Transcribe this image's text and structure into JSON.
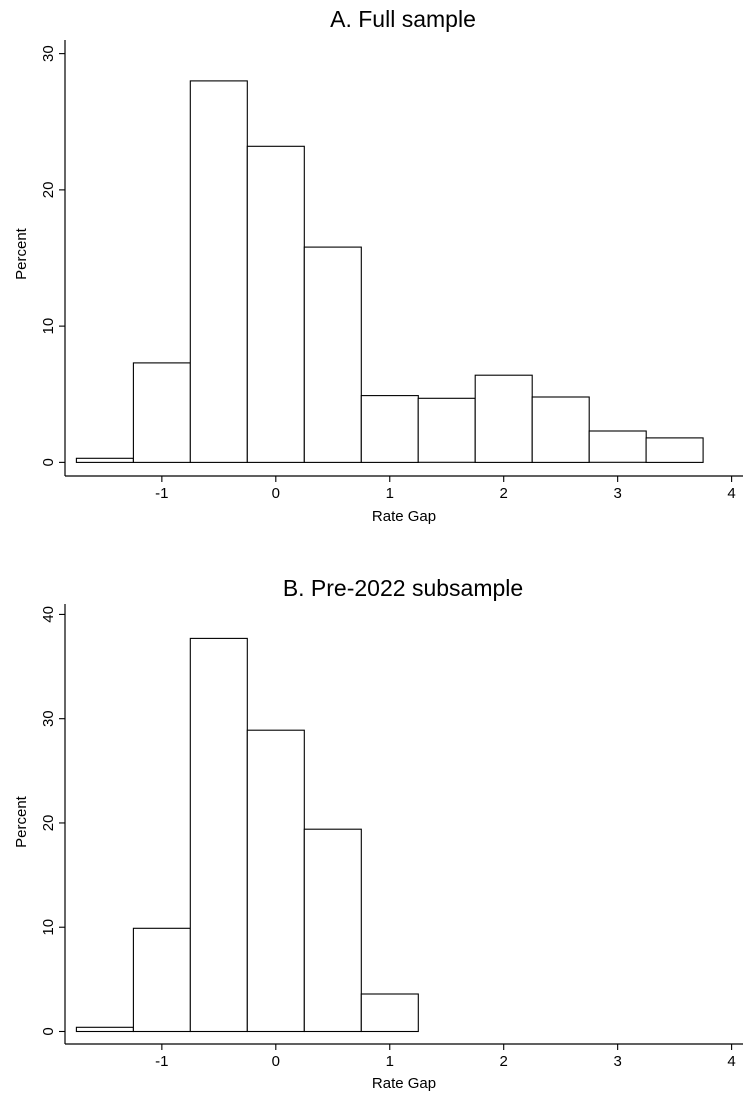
{
  "chart_data": [
    {
      "type": "bar",
      "title": "A. Full sample",
      "xlabel": "Rate Gap",
      "ylabel": "Percent",
      "bin_width": 0.5,
      "bins": [
        {
          "x0": -1.75,
          "x1": -1.25,
          "value": 0.3
        },
        {
          "x0": -1.25,
          "x1": -0.75,
          "value": 7.3
        },
        {
          "x0": -0.75,
          "x1": -0.25,
          "value": 28.0
        },
        {
          "x0": -0.25,
          "x1": 0.25,
          "value": 23.2
        },
        {
          "x0": 0.25,
          "x1": 0.75,
          "value": 15.8
        },
        {
          "x0": 0.75,
          "x1": 1.25,
          "value": 4.9
        },
        {
          "x0": 1.25,
          "x1": 1.75,
          "value": 4.7
        },
        {
          "x0": 1.75,
          "x1": 2.25,
          "value": 6.4
        },
        {
          "x0": 2.25,
          "x1": 2.75,
          "value": 4.8
        },
        {
          "x0": 2.75,
          "x1": 3.25,
          "value": 2.3
        },
        {
          "x0": 3.25,
          "x1": 3.75,
          "value": 1.8
        }
      ],
      "xlim": [
        -1.85,
        4.1
      ],
      "ylim": [
        -1,
        31
      ],
      "xticks": [
        -1,
        0,
        1,
        2,
        3,
        4
      ],
      "xtick_labels": [
        "-1",
        "0",
        "1",
        "2",
        "3",
        "4"
      ],
      "yticks": [
        0,
        10,
        20,
        30
      ],
      "ytick_labels": [
        "0",
        "10",
        "20",
        "30"
      ]
    },
    {
      "type": "bar",
      "title": "B. Pre-2022 subsample",
      "xlabel": "Rate Gap",
      "ylabel": "Percent",
      "bin_width": 0.5,
      "bins": [
        {
          "x0": -1.75,
          "x1": -1.25,
          "value": 0.4
        },
        {
          "x0": -1.25,
          "x1": -0.75,
          "value": 9.9
        },
        {
          "x0": -0.75,
          "x1": -0.25,
          "value": 37.7
        },
        {
          "x0": -0.25,
          "x1": 0.25,
          "value": 28.9
        },
        {
          "x0": 0.25,
          "x1": 0.75,
          "value": 19.4
        },
        {
          "x0": 0.75,
          "x1": 1.25,
          "value": 3.6
        }
      ],
      "xlim": [
        -1.85,
        4.1
      ],
      "ylim": [
        -1.2,
        41
      ],
      "xticks": [
        -1,
        0,
        1,
        2,
        3,
        4
      ],
      "xtick_labels": [
        "-1",
        "0",
        "1",
        "2",
        "3",
        "4"
      ],
      "yticks": [
        0,
        10,
        20,
        30,
        40
      ],
      "ytick_labels": [
        "0",
        "10",
        "20",
        "30",
        "40"
      ]
    }
  ]
}
